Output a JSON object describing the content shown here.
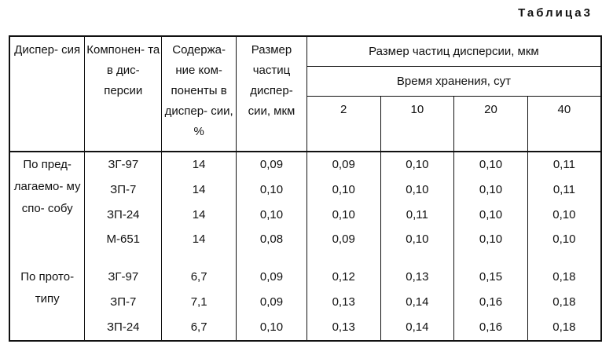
{
  "caption": "Таблица3",
  "headers": {
    "dispersion": "Диспер- сия",
    "components": "Компонен- та в дис- персии",
    "content": "Содержа- ние ком- поненты в диспер- сии, %",
    "size": "Размер частиц диспер- сии, мкм",
    "group": "Размер частиц дисперсии, мкм",
    "storage": "Время хранения, сут",
    "days": [
      "2",
      "10",
      "20",
      "40"
    ]
  },
  "groups": [
    {
      "label": "По пред- лагаемо- му спо- собу",
      "rows": [
        {
          "component": "ЗГ-97",
          "content": "14",
          "size": "0,09",
          "d2": "0,09",
          "d10": "0,10",
          "d20": "0,10",
          "d40": "0,11"
        },
        {
          "component": "ЗП-7",
          "content": "14",
          "size": "0,10",
          "d2": "0,10",
          "d10": "0,10",
          "d20": "0,10",
          "d40": "0,11"
        },
        {
          "component": "ЗП-24",
          "content": "14",
          "size": "0,10",
          "d2": "0,10",
          "d10": "0,11",
          "d20": "0,10",
          "d40": "0,10"
        },
        {
          "component": "М-651",
          "content": "14",
          "size": "0,08",
          "d2": "0,09",
          "d10": "0,10",
          "d20": "0,10",
          "d40": "0,10"
        }
      ]
    },
    {
      "label": "По прото- типу",
      "rows": [
        {
          "component": "ЗГ-97",
          "content": "6,7",
          "size": "0,09",
          "d2": "0,12",
          "d10": "0,13",
          "d20": "0,15",
          "d40": "0,18"
        },
        {
          "component": "ЗП-7",
          "content": "7,1",
          "size": "0,09",
          "d2": "0,13",
          "d10": "0,14",
          "d20": "0,16",
          "d40": "0,18"
        },
        {
          "component": "ЗП-24",
          "content": "6,7",
          "size": "0,10",
          "d2": "0,13",
          "d10": "0,14",
          "d20": "0,16",
          "d40": "0,18"
        }
      ]
    }
  ]
}
